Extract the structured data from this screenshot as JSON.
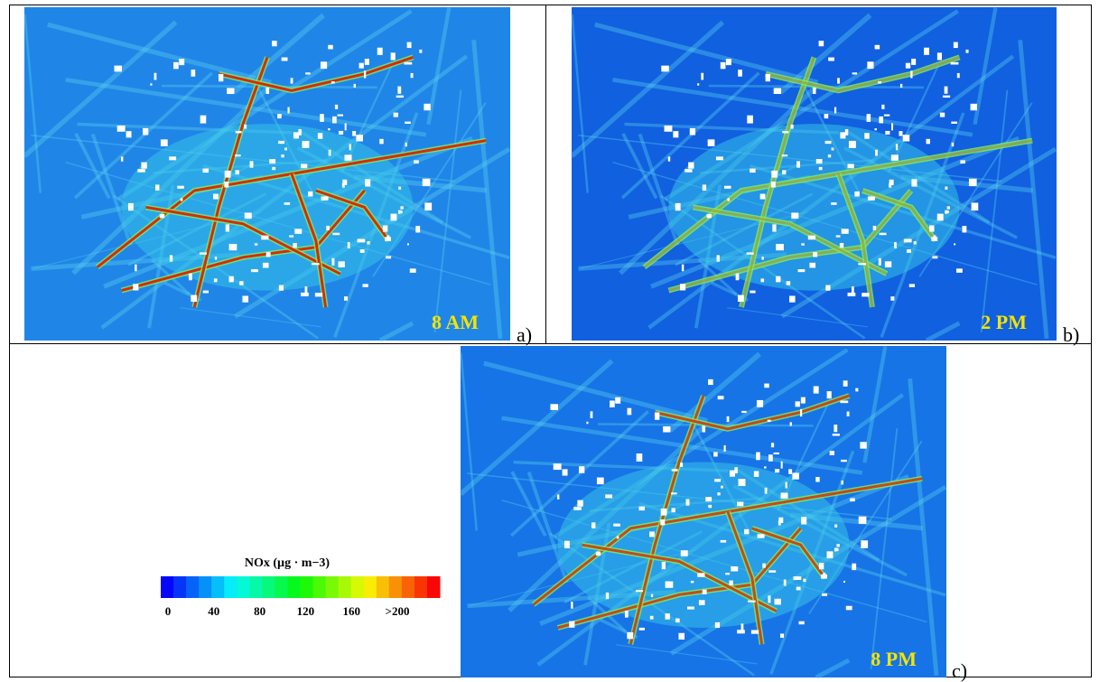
{
  "panels": [
    {
      "time": "8 AM",
      "label": "a)"
    },
    {
      "time": "2 PM",
      "label": "b)"
    },
    {
      "time": "8 PM",
      "label": "c)"
    }
  ],
  "colorbar": {
    "title": "NOx (µg · m−3)",
    "ticks": [
      0,
      40,
      80,
      120,
      160,
      {
        "value": 200,
        "label": ">200"
      }
    ]
  }
}
